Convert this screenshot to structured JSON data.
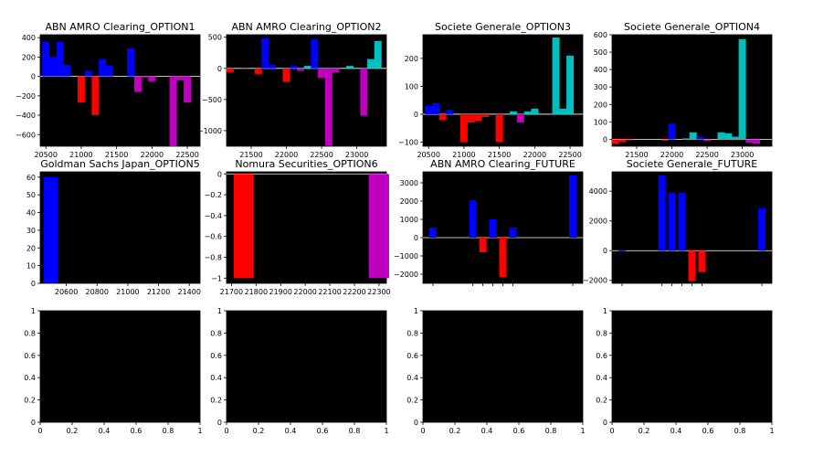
{
  "chart_data": [
    {
      "type": "bar",
      "title": "ABN AMRO Clearing_OPTION1",
      "xlim": [
        20420,
        22680
      ],
      "ylim": [
        -720,
        430
      ],
      "xticks": [
        20500,
        21000,
        21500,
        22000,
        22500
      ],
      "yticks": [
        400,
        200,
        0,
        -200,
        -400,
        -600
      ],
      "bars": [
        {
          "x": 20500,
          "y": 360,
          "color": "#0000ff"
        },
        {
          "x": 20600,
          "y": 200,
          "color": "#0000ff"
        },
        {
          "x": 20700,
          "y": 355,
          "color": "#0000ff"
        },
        {
          "x": 20800,
          "y": 120,
          "color": "#0000ff"
        },
        {
          "x": 21000,
          "y": -270,
          "color": "#ff0000"
        },
        {
          "x": 21100,
          "y": 60,
          "color": "#0000ff"
        },
        {
          "x": 21200,
          "y": -400,
          "color": "#ff0000"
        },
        {
          "x": 21300,
          "y": 180,
          "color": "#0000ff"
        },
        {
          "x": 21400,
          "y": 110,
          "color": "#0000ff"
        },
        {
          "x": 21700,
          "y": 290,
          "color": "#0000ff"
        },
        {
          "x": 21800,
          "y": -160,
          "color": "#bf00bf"
        },
        {
          "x": 21900,
          "y": -10,
          "color": "#bf00bf"
        },
        {
          "x": 22000,
          "y": -50,
          "color": "#bf00bf"
        },
        {
          "x": 22300,
          "y": -720,
          "color": "#bf00bf"
        },
        {
          "x": 22400,
          "y": -40,
          "color": "#bf00bf"
        },
        {
          "x": 22500,
          "y": -270,
          "color": "#bf00bf"
        }
      ]
    },
    {
      "type": "bar",
      "title": "ABN AMRO Clearing_OPTION2",
      "xlim": [
        21150,
        23420
      ],
      "ylim": [
        -1250,
        540
      ],
      "xticks": [
        21500,
        22000,
        22500,
        23000
      ],
      "yticks": [
        500,
        0,
        -500,
        -1000
      ],
      "bars": [
        {
          "x": 21200,
          "y": -60,
          "color": "#ff0000"
        },
        {
          "x": 21400,
          "y": -10,
          "color": "#ff0000"
        },
        {
          "x": 21600,
          "y": -90,
          "color": "#ff0000"
        },
        {
          "x": 21700,
          "y": 490,
          "color": "#0000ff"
        },
        {
          "x": 21800,
          "y": 60,
          "color": "#0000ff"
        },
        {
          "x": 22000,
          "y": -220,
          "color": "#ff0000"
        },
        {
          "x": 22100,
          "y": 40,
          "color": "#0000ff"
        },
        {
          "x": 22200,
          "y": -40,
          "color": "#bf00bf"
        },
        {
          "x": 22300,
          "y": 40,
          "color": "#00bfbf"
        },
        {
          "x": 22400,
          "y": 470,
          "color": "#0000ff"
        },
        {
          "x": 22500,
          "y": -150,
          "color": "#bf00bf"
        },
        {
          "x": 22600,
          "y": -1240,
          "color": "#bf00bf"
        },
        {
          "x": 22700,
          "y": -60,
          "color": "#bf00bf"
        },
        {
          "x": 22900,
          "y": 40,
          "color": "#00bfbf"
        },
        {
          "x": 23100,
          "y": -760,
          "color": "#bf00bf"
        },
        {
          "x": 23200,
          "y": 150,
          "color": "#00bfbf"
        },
        {
          "x": 23300,
          "y": 440,
          "color": "#00bfbf"
        }
      ]
    },
    {
      "type": "bar",
      "title": "Societe Generale_OPTION3",
      "xlim": [
        20420,
        22680
      ],
      "ylim": [
        -115,
        285
      ],
      "xticks": [
        20500,
        21000,
        21500,
        22000,
        22500
      ],
      "yticks": [
        200,
        100,
        0,
        -100
      ],
      "bars": [
        {
          "x": 20500,
          "y": 30,
          "color": "#0000ff"
        },
        {
          "x": 20600,
          "y": 40,
          "color": "#0000ff"
        },
        {
          "x": 20700,
          "y": -20,
          "color": "#ff0000"
        },
        {
          "x": 20800,
          "y": 15,
          "color": "#0000ff"
        },
        {
          "x": 21000,
          "y": -100,
          "color": "#ff0000"
        },
        {
          "x": 21100,
          "y": -30,
          "color": "#ff0000"
        },
        {
          "x": 21200,
          "y": -25,
          "color": "#ff0000"
        },
        {
          "x": 21300,
          "y": -10,
          "color": "#ff0000"
        },
        {
          "x": 21500,
          "y": -100,
          "color": "#ff0000"
        },
        {
          "x": 21700,
          "y": 10,
          "color": "#00bfbf"
        },
        {
          "x": 21800,
          "y": -30,
          "color": "#bf00bf"
        },
        {
          "x": 21900,
          "y": 10,
          "color": "#00bfbf"
        },
        {
          "x": 22000,
          "y": 20,
          "color": "#00bfbf"
        },
        {
          "x": 22300,
          "y": 275,
          "color": "#00bfbf"
        },
        {
          "x": 22400,
          "y": 20,
          "color": "#00bfbf"
        },
        {
          "x": 22500,
          "y": 210,
          "color": "#00bfbf"
        }
      ]
    },
    {
      "type": "bar",
      "title": "Societe Generale_OPTION4",
      "xlim": [
        21150,
        23420
      ],
      "ylim": [
        -40,
        600
      ],
      "xticks": [
        21500,
        22000,
        22500,
        23000
      ],
      "yticks": [
        600,
        500,
        400,
        300,
        200,
        100,
        0
      ],
      "bars": [
        {
          "x": 21200,
          "y": -25,
          "color": "#ff0000"
        },
        {
          "x": 21300,
          "y": -15,
          "color": "#ff0000"
        },
        {
          "x": 21400,
          "y": -5,
          "color": "#ff0000"
        },
        {
          "x": 21900,
          "y": -8,
          "color": "#ff0000"
        },
        {
          "x": 22000,
          "y": 90,
          "color": "#0000ff"
        },
        {
          "x": 22200,
          "y": 5,
          "color": "#00bfbf"
        },
        {
          "x": 22300,
          "y": 40,
          "color": "#00bfbf"
        },
        {
          "x": 22400,
          "y": 15,
          "color": "#0000ff"
        },
        {
          "x": 22500,
          "y": -10,
          "color": "#bf00bf"
        },
        {
          "x": 22700,
          "y": 40,
          "color": "#00bfbf"
        },
        {
          "x": 22800,
          "y": 35,
          "color": "#00bfbf"
        },
        {
          "x": 22900,
          "y": 15,
          "color": "#00bfbf"
        },
        {
          "x": 23000,
          "y": 575,
          "color": "#00bfbf"
        },
        {
          "x": 23100,
          "y": -20,
          "color": "#bf00bf"
        },
        {
          "x": 23200,
          "y": -25,
          "color": "#bf00bf"
        }
      ]
    },
    {
      "type": "bar",
      "title": "Goldman Sachs Japan_OPTION5",
      "xlim": [
        20430,
        21470
      ],
      "ylim": [
        0,
        63
      ],
      "xticks": [
        20600,
        20800,
        21000,
        21200,
        21400
      ],
      "yticks": [
        60,
        50,
        40,
        30,
        20,
        10,
        0
      ],
      "bars": [
        {
          "x": 20500,
          "y": 60,
          "color": "#0000ff"
        }
      ]
    },
    {
      "type": "bar",
      "title": "Nomura Securities_OPTION6",
      "xlim": [
        21680,
        22330
      ],
      "ylim": [
        -1.05,
        0.02
      ],
      "xticks": [
        21700,
        21800,
        21900,
        22000,
        22100,
        22200,
        22300
      ],
      "yticks": [
        0.0,
        -0.2,
        -0.4,
        -0.6,
        -0.8,
        -1.0
      ],
      "bars": [
        {
          "x": 21750,
          "y": -1.0,
          "color": "#ff0000"
        },
        {
          "x": 22300,
          "y": -1.0,
          "color": "#bf00bf"
        }
      ]
    },
    {
      "type": "bar",
      "title": "ABN AMRO Clearing_FUTURE",
      "xlim": [
        0,
        16
      ],
      "ylim": [
        -2500,
        3600
      ],
      "xticks": [],
      "yticks": [
        3000,
        2000,
        1000,
        0,
        -1000,
        -2000
      ],
      "bars": [
        {
          "x": 1,
          "y": 550,
          "color": "#0000ff"
        },
        {
          "x": 5,
          "y": 2050,
          "color": "#0000ff"
        },
        {
          "x": 6,
          "y": -800,
          "color": "#ff0000"
        },
        {
          "x": 7,
          "y": 1000,
          "color": "#0000ff"
        },
        {
          "x": 8,
          "y": -2150,
          "color": "#ff0000"
        },
        {
          "x": 9,
          "y": 550,
          "color": "#0000ff"
        },
        {
          "x": 15,
          "y": 3400,
          "color": "#0000ff"
        }
      ]
    },
    {
      "type": "bar",
      "title": "Societe Generale_FUTURE",
      "xlim": [
        0,
        16
      ],
      "ylim": [
        -2200,
        5300
      ],
      "xticks": [],
      "yticks": [
        4000,
        2000,
        0,
        -2000
      ],
      "bars": [
        {
          "x": 1,
          "y": 50,
          "color": "#0000ff"
        },
        {
          "x": 5,
          "y": 5050,
          "color": "#0000ff"
        },
        {
          "x": 6,
          "y": 3900,
          "color": "#0000ff"
        },
        {
          "x": 7,
          "y": 3900,
          "color": "#0000ff"
        },
        {
          "x": 8,
          "y": -2050,
          "color": "#ff0000"
        },
        {
          "x": 9,
          "y": -1450,
          "color": "#ff0000"
        },
        {
          "x": 15,
          "y": 2850,
          "color": "#0000ff"
        }
      ]
    },
    {
      "type": "bar",
      "title": "",
      "xlim": [
        0,
        1
      ],
      "ylim": [
        0,
        1
      ],
      "xticks": [
        0.0,
        0.2,
        0.4,
        0.6,
        0.8,
        1.0
      ],
      "yticks": [
        1.0,
        0.8,
        0.6,
        0.4,
        0.2,
        0.0
      ],
      "bars": []
    },
    {
      "type": "bar",
      "title": "",
      "xlim": [
        0,
        1
      ],
      "ylim": [
        0,
        1
      ],
      "xticks": [
        0.0,
        0.2,
        0.4,
        0.6,
        0.8,
        1.0
      ],
      "yticks": [
        1.0,
        0.8,
        0.6,
        0.4,
        0.2,
        0.0
      ],
      "bars": []
    },
    {
      "type": "bar",
      "title": "",
      "xlim": [
        0,
        1
      ],
      "ylim": [
        0,
        1
      ],
      "xticks": [
        0.0,
        0.2,
        0.4,
        0.6,
        0.8,
        1.0
      ],
      "yticks": [
        1.0,
        0.8,
        0.6,
        0.4,
        0.2,
        0.0
      ],
      "bars": []
    },
    {
      "type": "bar",
      "title": "",
      "xlim": [
        0,
        1
      ],
      "ylim": [
        0,
        1
      ],
      "xticks": [
        0.0,
        0.2,
        0.4,
        0.6,
        0.8,
        1.0
      ],
      "yticks": [
        1.0,
        0.8,
        0.6,
        0.4,
        0.2,
        0.0
      ],
      "bars": []
    }
  ]
}
